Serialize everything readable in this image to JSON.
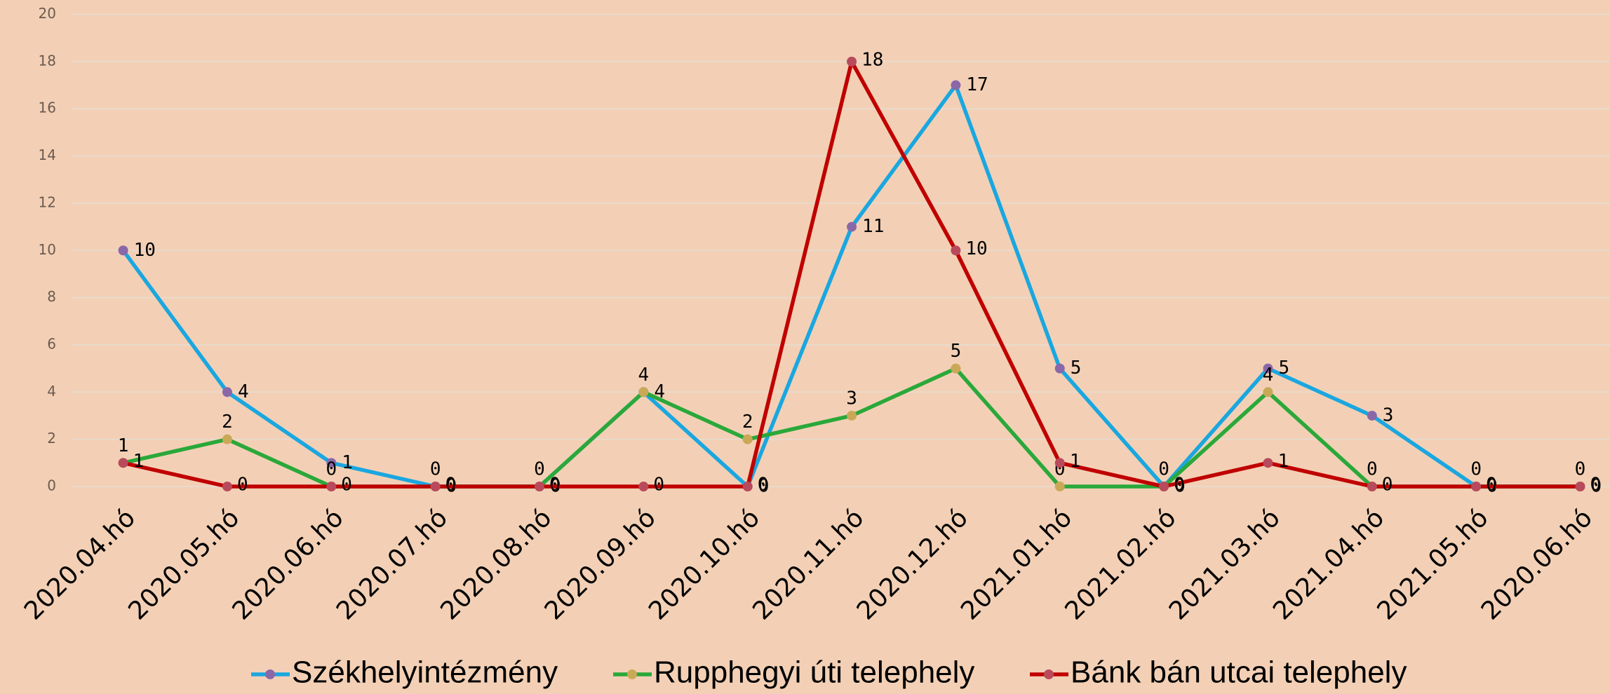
{
  "chart_data": {
    "type": "line",
    "categories": [
      "2020.04.hó",
      "2020.05.hó",
      "2020.06.hó",
      "2020.07.hó",
      "2020.08.hó",
      "2020.09.hó",
      "2020.10.hó",
      "2020.11.hó",
      "2020.12.hó",
      "2021.01.hó",
      "2021.02.hó",
      "2021.03.hó",
      "2021.04.hó",
      "2021.05.hó",
      "2020.06.hó"
    ],
    "series": [
      {
        "name": "Székhelyintézmény",
        "color": "#1aa7e0",
        "marker_color": "#8a68a8",
        "values": [
          10,
          4,
          1,
          0,
          0,
          4,
          0,
          11,
          17,
          5,
          0,
          5,
          3,
          0,
          0
        ]
      },
      {
        "name": "Rupphegyi úti telephely",
        "color": "#2aa83a",
        "marker_color": "#c9a858",
        "values": [
          1,
          2,
          0,
          0,
          0,
          4,
          2,
          3,
          5,
          0,
          0,
          4,
          0,
          0,
          0
        ]
      },
      {
        "name": "Bánk bán utcai telephely",
        "color": "#c00000",
        "marker_color": "#b84a5c",
        "values": [
          1,
          0,
          0,
          0,
          0,
          0,
          0,
          18,
          10,
          1,
          0,
          1,
          0,
          0,
          0
        ]
      }
    ],
    "ylim": [
      0,
      20
    ],
    "yticks": [
      0,
      2,
      4,
      6,
      8,
      10,
      12,
      14,
      16,
      18,
      20
    ],
    "grid": true,
    "legend": "bottom"
  }
}
